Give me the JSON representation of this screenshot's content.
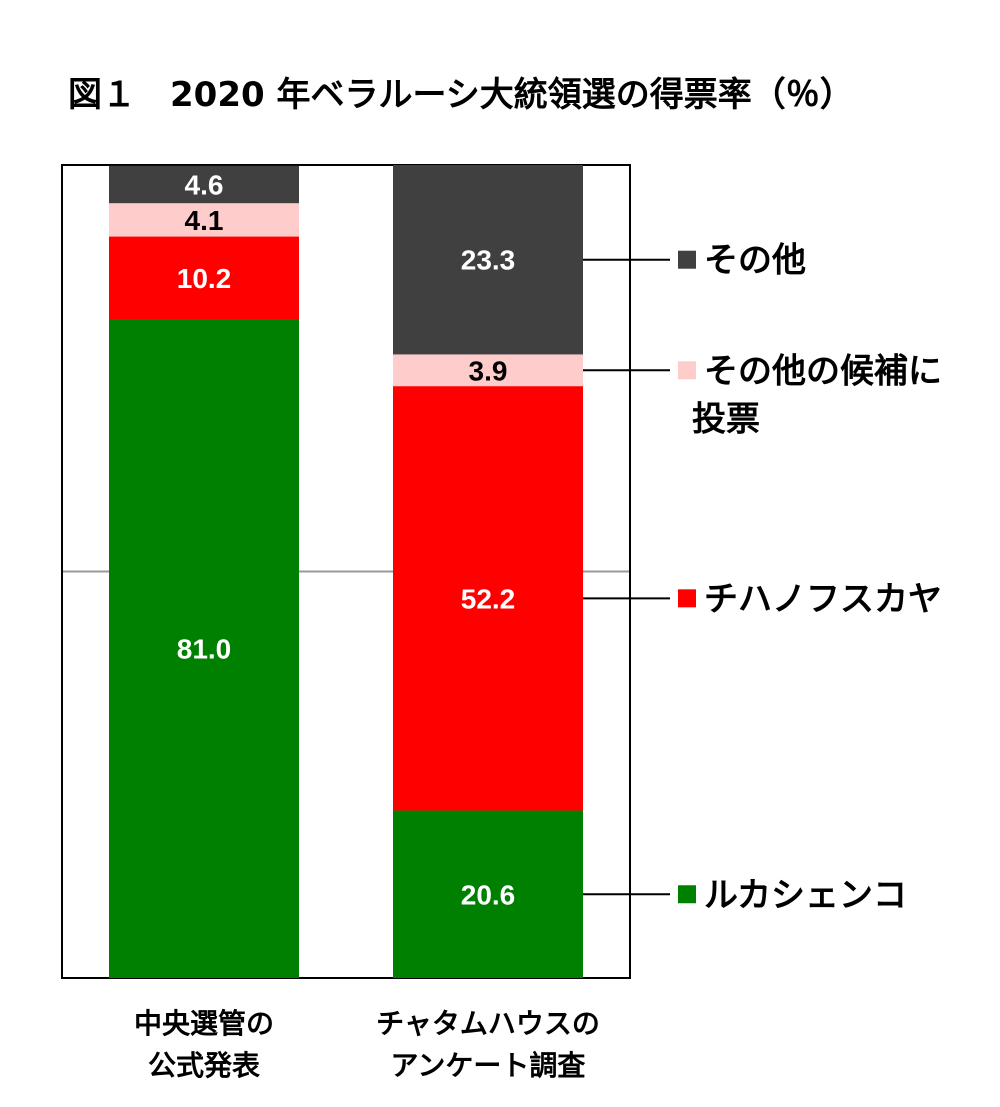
{
  "chart_data": {
    "type": "bar",
    "stacked": true,
    "title": "図１　2020 年ベラルーシ大統領選の得票率（％）",
    "categories": [
      [
        "中央選管の",
        "公式発表"
      ],
      [
        "チャタムハウスの",
        "アンケート調査"
      ]
    ],
    "ylim": [
      0,
      100
    ],
    "gridlines": [
      50
    ],
    "series": [
      {
        "name": "ルカシェンコ",
        "values": [
          81.0,
          20.6
        ],
        "color": "#008000",
        "label_color": "#ffffff"
      },
      {
        "name": "チハノフスカヤ",
        "values": [
          10.2,
          52.2
        ],
        "color": "#ff0000",
        "label_color": "#ffffff"
      },
      {
        "name": "その他の候補に投票",
        "legend_lines": [
          "その他の候補に",
          "投票"
        ],
        "values": [
          4.1,
          3.9
        ],
        "color": "#ffcccc",
        "label_color": "#000000"
      },
      {
        "name": "その他",
        "values": [
          4.6,
          23.3
        ],
        "color": "#404040",
        "label_color": "#ffffff"
      }
    ],
    "value_labels": [
      [
        "81.0",
        "10.2",
        "4.1",
        "4.6"
      ],
      [
        "20.6",
        "52.2",
        "3.9",
        "23.3"
      ]
    ]
  }
}
